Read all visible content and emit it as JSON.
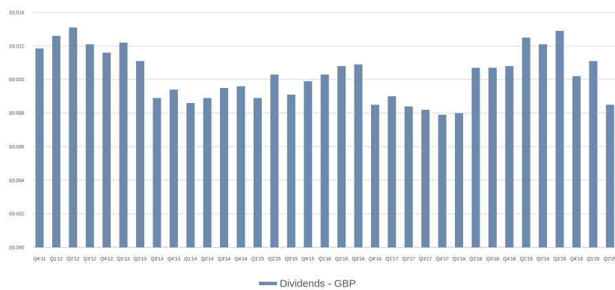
{
  "chart_data": {
    "type": "bar",
    "categories": [
      "Q4'11",
      "Q1'12",
      "Q2'12",
      "Q3'12",
      "Q4'12",
      "Q1'13",
      "Q2'13",
      "Q3'13",
      "Q4'13",
      "Q1'14",
      "Q2'14",
      "Q3'14",
      "Q4'14",
      "Q1'15",
      "Q2'15",
      "Q3'15",
      "Q4'15",
      "Q1'16",
      "Q2'16",
      "Q3'16",
      "Q4'16",
      "Q1'17",
      "Q2'17",
      "Q3'17",
      "Q4'17",
      "Q1'18",
      "Q2'18",
      "Q3'18",
      "Q4'18",
      "Q1'19",
      "Q2'19",
      "Q3'19",
      "Q4'19",
      "Q1'20",
      "Q2'20"
    ],
    "series": [
      {
        "name": "Dividends - GBP",
        "values": [
          0.01185,
          0.0126,
          0.0131,
          0.0121,
          0.0116,
          0.0122,
          0.0111,
          0.0089,
          0.0094,
          0.0086,
          0.0089,
          0.0095,
          0.0096,
          0.0089,
          0.0103,
          0.0091,
          0.0099,
          0.0103,
          0.0108,
          0.0109,
          0.0085,
          0.009,
          0.0084,
          0.0082,
          0.0079,
          0.008,
          0.0107,
          0.0107,
          0.0108,
          0.0125,
          0.0121,
          0.0129,
          0.0102,
          0.0111,
          0.0085
        ]
      }
    ],
    "yticks": [
      "£0.000",
      "£0.002",
      "£0.004",
      "£0.006",
      "£0.008",
      "£0.010",
      "£0.012",
      "£0.014"
    ],
    "ylim": [
      0,
      0.014
    ],
    "grid": true,
    "legend_position": "bottom",
    "colors": {
      "bar": "#6e8aad",
      "grid": "#d4d4d4"
    },
    "title": "",
    "xlabel": "",
    "ylabel": ""
  }
}
